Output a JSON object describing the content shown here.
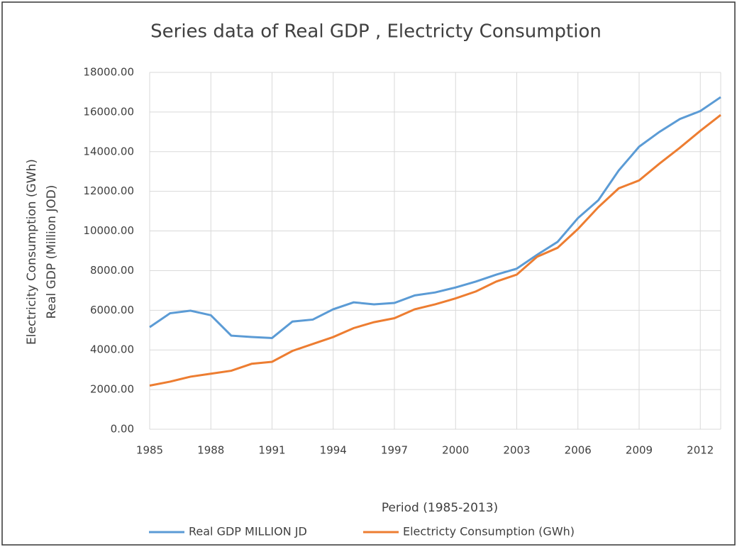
{
  "chart_data": {
    "type": "line",
    "title": "Series data of Real GDP , Electricty Consumption",
    "y_label": [
      "Electricity Consumption (GWh)",
      "Real GDP (Million JOD)"
    ],
    "x_label": "Period (1985-2013)",
    "x": [
      1985,
      1986,
      1987,
      1988,
      1989,
      1990,
      1991,
      1992,
      1993,
      1994,
      1995,
      1996,
      1997,
      1998,
      1999,
      2000,
      2001,
      2002,
      2003,
      2004,
      2005,
      2006,
      2007,
      2008,
      2009,
      2010,
      2011,
      2012,
      2013
    ],
    "series": [
      {
        "name": "Real GDP MILLION JD",
        "color": "#5b9bd5",
        "values": [
          5150,
          5850,
          5980,
          5750,
          4720,
          4650,
          4600,
          5430,
          5530,
          6050,
          6400,
          6300,
          6370,
          6750,
          6900,
          7150,
          7450,
          7800,
          8100,
          8800,
          9450,
          10650,
          11550,
          13050,
          14250,
          15000,
          15650,
          16050,
          16750
        ]
      },
      {
        "name": "Electricty Consumption (GWh)",
        "color": "#ed7d31",
        "values": [
          2200,
          2400,
          2650,
          2800,
          2950,
          3300,
          3400,
          3950,
          4300,
          4650,
          5100,
          5400,
          5600,
          6050,
          6300,
          6600,
          6950,
          7450,
          7800,
          8700,
          9150,
          10100,
          11200,
          12150,
          12550,
          13400,
          14200,
          15050,
          15850
        ]
      }
    ],
    "xlim": [
      1985,
      2013
    ],
    "xticks": [
      1985,
      1988,
      1991,
      1994,
      1997,
      2000,
      2003,
      2006,
      2009,
      2012
    ],
    "ylim": [
      0,
      18000
    ],
    "yticks": [
      {
        "value": 0,
        "label": "0.00"
      },
      {
        "value": 2000,
        "label": "2000.00"
      },
      {
        "value": 4000,
        "label": "4000.00"
      },
      {
        "value": 6000,
        "label": "6000.00"
      },
      {
        "value": 8000,
        "label": "8000.00"
      },
      {
        "value": 10000,
        "label": "10000.00"
      },
      {
        "value": 12000,
        "label": "12000.00"
      },
      {
        "value": 14000,
        "label": "14000.00"
      },
      {
        "value": 16000,
        "label": "16000.00"
      },
      {
        "value": 18000,
        "label": "18000.00"
      }
    ],
    "grid": true,
    "legend": "bottom"
  }
}
